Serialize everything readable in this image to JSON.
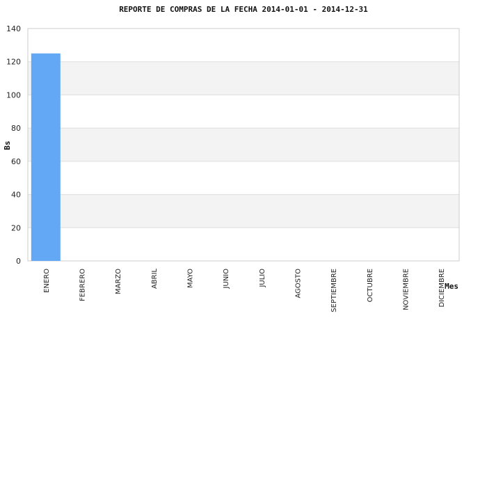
{
  "chart_data": {
    "type": "bar",
    "title": "REPORTE DE COMPRAS DE LA FECHA 2014-01-01 - 2014-12-31",
    "xlabel": "Mes",
    "ylabel": "Bs",
    "categories": [
      "ENERO",
      "FEBRERO",
      "MARZO",
      "ABRIL",
      "MAYO",
      "JUNIO",
      "JULIO",
      "AGOSTO",
      "SEPTIEMBRE",
      "OCTUBRE",
      "NOVIEMBRE",
      "DICIEMBRE"
    ],
    "values": [
      125,
      0,
      0,
      0,
      0,
      0,
      0,
      0,
      0,
      0,
      0,
      0
    ],
    "ylim": [
      0,
      140
    ],
    "yticks": [
      0,
      20,
      40,
      60,
      80,
      100,
      120,
      140
    ],
    "grid": "alternating horizontal bands",
    "legend": "none",
    "colors": {
      "bar": "#62a8f5",
      "band": "#f3f3f3",
      "gridline": "#dddddd",
      "frame": "#cccccc"
    }
  }
}
